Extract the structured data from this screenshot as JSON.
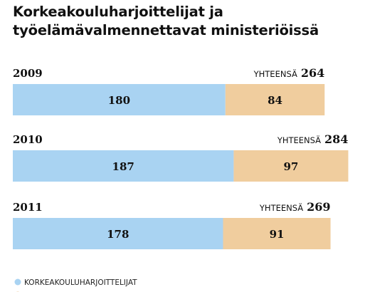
{
  "title": "Korkeakouluharjoittelijat ja työelämävalmennettavat ministeriöissä",
  "total_label": "YHTEENSÄ",
  "colors": {
    "series_1": "#a9d3f2",
    "series_2": "#f0cd9e"
  },
  "chart_data": {
    "type": "bar",
    "orientation": "horizontal",
    "stacked": true,
    "categories": [
      "2009",
      "2010",
      "2011"
    ],
    "series": [
      {
        "name": "KORKEAKOULUHARJOITTELIJAT",
        "values": [
          180,
          187,
          178
        ]
      },
      {
        "name": "",
        "values": [
          84,
          97,
          91
        ]
      }
    ],
    "totals": [
      264,
      284,
      269
    ],
    "grid": false,
    "legend": "bottom-left"
  }
}
